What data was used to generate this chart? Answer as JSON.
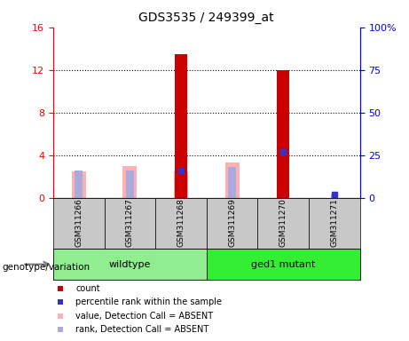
{
  "title": "GDS3535 / 249399_at",
  "samples": [
    "GSM311266",
    "GSM311267",
    "GSM311268",
    "GSM311269",
    "GSM311270",
    "GSM311271"
  ],
  "count_values": [
    0,
    0,
    13.5,
    0,
    12.0,
    0
  ],
  "rank_values_pct": [
    0,
    0,
    16,
    0,
    27,
    2
  ],
  "absent_value_bars": [
    2.5,
    3.0,
    2.5,
    3.3,
    0,
    0
  ],
  "absent_rank_bars_pct": [
    16,
    16,
    16,
    18,
    0,
    2
  ],
  "ylim_left": [
    0,
    16
  ],
  "ylim_right": [
    0,
    100
  ],
  "yticks_left": [
    0,
    4,
    8,
    12,
    16
  ],
  "yticks_right": [
    0,
    25,
    50,
    75,
    100
  ],
  "ytick_labels_right": [
    "0",
    "25",
    "50",
    "75",
    "100%"
  ],
  "count_color": "#CC0000",
  "rank_color": "#3333CC",
  "absent_value_color": "#FFB0B0",
  "absent_rank_color": "#AAAADD",
  "label_area_bg": "#C8C8C8",
  "wildtype_color": "#90EE90",
  "mutant_color": "#33EE33",
  "group_info": [
    {
      "name": "wildtype",
      "start": 0,
      "end": 2
    },
    {
      "name": "ged1 mutant",
      "start": 3,
      "end": 5
    }
  ],
  "legend_items": [
    {
      "label": "count",
      "color": "#CC0000"
    },
    {
      "label": "percentile rank within the sample",
      "color": "#3333CC"
    },
    {
      "label": "value, Detection Call = ABSENT",
      "color": "#FFB0B0"
    },
    {
      "label": "rank, Detection Call = ABSENT",
      "color": "#AAAADD"
    }
  ]
}
